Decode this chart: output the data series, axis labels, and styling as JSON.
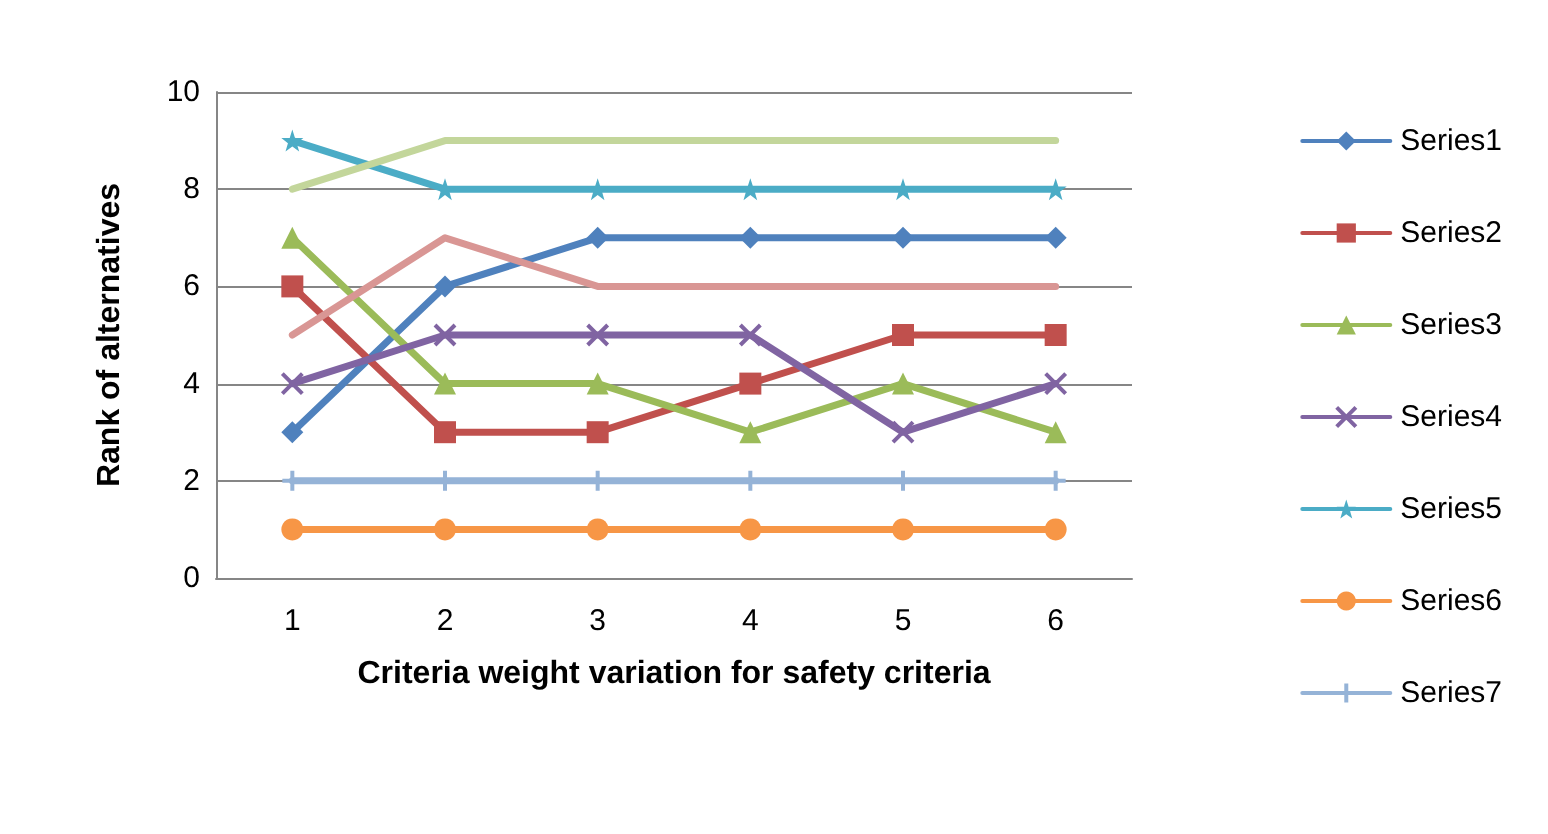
{
  "chart_data": {
    "type": "line",
    "xlabel": "Criteria weight variation for safety criteria",
    "ylabel": "Rank of alternatives",
    "categories": [
      "1",
      "2",
      "3",
      "4",
      "5",
      "6"
    ],
    "ylim": [
      0,
      10
    ],
    "yticks": [
      0,
      2,
      4,
      6,
      8,
      10
    ],
    "grid": "y",
    "legend": "right",
    "line_style": "solid",
    "series": [
      {
        "name": "Series1",
        "color": "#4f81bd",
        "marker": "diamond",
        "values": [
          3,
          6,
          7,
          7,
          7,
          7
        ]
      },
      {
        "name": "Series2",
        "color": "#c0504d",
        "marker": "square",
        "values": [
          6,
          3,
          3,
          4,
          5,
          5
        ]
      },
      {
        "name": "Series3",
        "color": "#9bbb59",
        "marker": "triangle",
        "values": [
          7,
          4,
          4,
          3,
          4,
          3
        ]
      },
      {
        "name": "Series4",
        "color": "#8064a2",
        "marker": "cross",
        "values": [
          4,
          5,
          5,
          5,
          3,
          4
        ]
      },
      {
        "name": "Series5",
        "color": "#4bacc6",
        "marker": "star",
        "values": [
          9,
          8,
          8,
          8,
          8,
          8
        ]
      },
      {
        "name": "Series6",
        "color": "#f79646",
        "marker": "circle",
        "values": [
          1,
          1,
          1,
          1,
          1,
          1
        ]
      },
      {
        "name": "Series7",
        "color": "#95b3d7",
        "marker": "plus",
        "values": [
          2,
          2,
          2,
          2,
          2,
          2
        ]
      },
      {
        "color": "#c3d69b",
        "marker": "none",
        "values": [
          8,
          9,
          9,
          9,
          9,
          9
        ]
      },
      {
        "color": "#d99694",
        "marker": "none",
        "values": [
          5,
          7,
          6,
          6,
          6,
          6
        ]
      }
    ]
  }
}
